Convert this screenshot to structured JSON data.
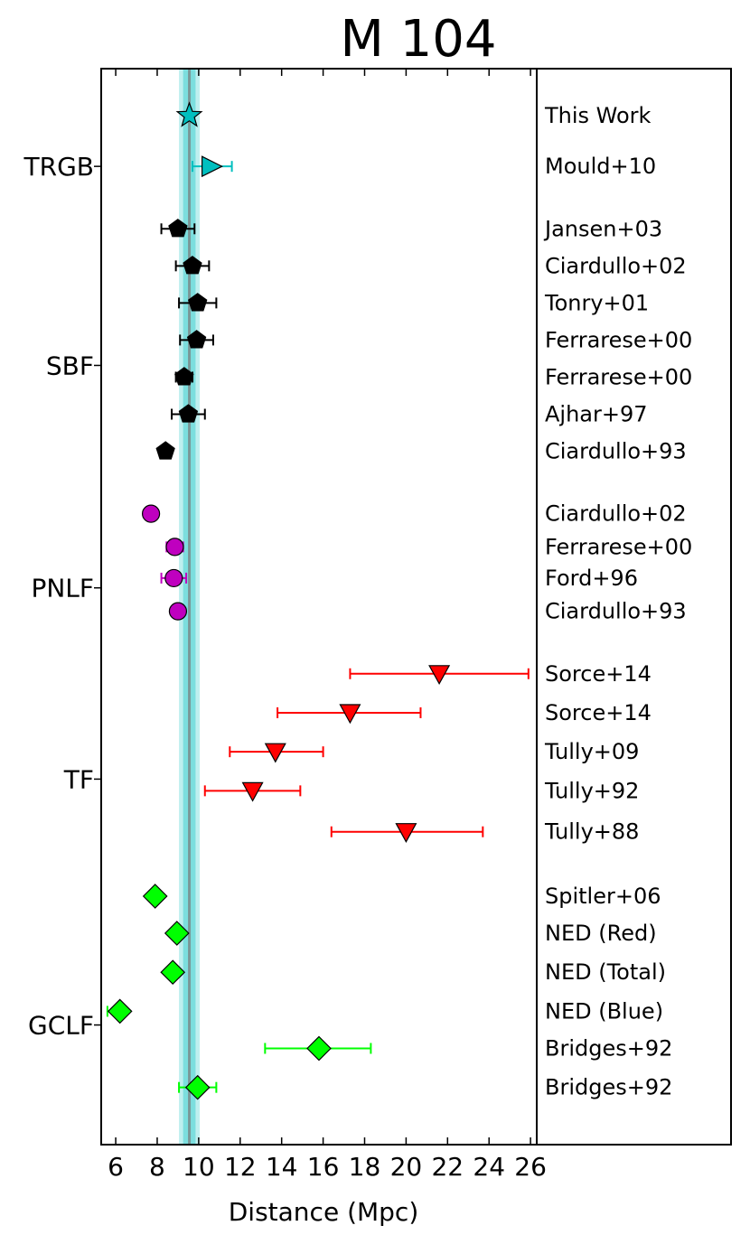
{
  "chart_data": {
    "type": "scatter",
    "title": "M 104",
    "xlabel": "Distance (Mpc)",
    "xlim": [
      5.3,
      26.3
    ],
    "xticks": [
      6,
      8,
      10,
      12,
      14,
      16,
      18,
      20,
      22,
      24,
      26
    ],
    "reference": {
      "value": 9.55,
      "band_inner": [
        9.25,
        9.85
      ],
      "band_outer": [
        9.05,
        10.05
      ],
      "color": "#00bfbf"
    },
    "groups": [
      {
        "name": "TRGB",
        "row": 1.3,
        "color": "#00bfbf"
      },
      {
        "name": "SBF",
        "row": 6.4,
        "color": "#000000"
      },
      {
        "name": "PNLF",
        "row": 12.1,
        "color": "#bf00bf"
      },
      {
        "name": "TF",
        "row": 17.0,
        "color": "#ff0000"
      },
      {
        "name": "GCLF",
        "row": 23.3,
        "color": "#00ff00"
      }
    ],
    "points": [
      {
        "label": "This Work",
        "group": "TRGB",
        "marker": "star",
        "color": "#00bfbf",
        "x": 9.55,
        "err": [
          0,
          0
        ],
        "row": 0
      },
      {
        "label": "Mould+10",
        "group": "TRGB",
        "marker": "triangle-right",
        "color": "#00bfbf",
        "x": 10.6,
        "err": [
          0.9,
          1.0
        ],
        "row": 1.3
      },
      {
        "label": "Jansen+03",
        "group": "SBF",
        "marker": "pentagon",
        "color": "#000000",
        "x": 9.0,
        "err": [
          0.8,
          0.8
        ],
        "row": 2.9
      },
      {
        "label": "Ciardullo+02",
        "group": "SBF",
        "marker": "pentagon",
        "color": "#000000",
        "x": 9.7,
        "err": [
          0.8,
          0.8
        ],
        "row": 3.85
      },
      {
        "label": "Tonry+01",
        "group": "SBF",
        "marker": "pentagon",
        "color": "#000000",
        "x": 9.95,
        "err": [
          0.9,
          0.9
        ],
        "row": 4.8
      },
      {
        "label": "Ferrarese+00",
        "group": "SBF",
        "marker": "pentagon",
        "color": "#000000",
        "x": 9.9,
        "err": [
          0.8,
          0.8
        ],
        "row": 5.75
      },
      {
        "label": "Ferrarese+00",
        "group": "SBF",
        "marker": "pentagon",
        "color": "#000000",
        "x": 9.3,
        "err": [
          0.4,
          0.4
        ],
        "row": 6.7
      },
      {
        "label": "Ajhar+97",
        "group": "SBF",
        "marker": "pentagon",
        "color": "#000000",
        "x": 9.5,
        "err": [
          0.8,
          0.8
        ],
        "row": 7.65
      },
      {
        "label": "Ciardullo+93",
        "group": "SBF",
        "marker": "pentagon",
        "color": "#000000",
        "x": 8.4,
        "err": [
          0.2,
          0.2
        ],
        "row": 8.6
      },
      {
        "label": "Ciardullo+02",
        "group": "PNLF",
        "marker": "circle",
        "color": "#bf00bf",
        "x": 7.7,
        "err": [
          0,
          0
        ],
        "row": 10.2
      },
      {
        "label": "Ferrarese+00",
        "group": "PNLF",
        "marker": "circle",
        "color": "#bf00bf",
        "x": 8.85,
        "err": [
          0.4,
          0.4
        ],
        "row": 11.05
      },
      {
        "label": "Ford+96",
        "group": "PNLF",
        "marker": "circle",
        "color": "#bf00bf",
        "x": 8.8,
        "err": [
          0.6,
          0.6
        ],
        "row": 11.85
      },
      {
        "label": "Ciardullo+93",
        "group": "PNLF",
        "marker": "circle",
        "color": "#bf00bf",
        "x": 9.0,
        "err": [
          0,
          0
        ],
        "row": 12.7
      },
      {
        "label": "Sorce+14",
        "group": "TF",
        "marker": "triangle-down",
        "color": "#ff0000",
        "x": 21.6,
        "err": [
          4.3,
          4.3
        ],
        "row": 14.3
      },
      {
        "label": "Sorce+14",
        "group": "TF",
        "marker": "triangle-down",
        "color": "#ff0000",
        "x": 17.3,
        "err": [
          3.5,
          3.4
        ],
        "row": 15.3
      },
      {
        "label": "Tully+09",
        "group": "TF",
        "marker": "triangle-down",
        "color": "#ff0000",
        "x": 13.7,
        "err": [
          2.2,
          2.3
        ],
        "row": 16.3
      },
      {
        "label": "Tully+92",
        "group": "TF",
        "marker": "triangle-down",
        "color": "#ff0000",
        "x": 12.6,
        "err": [
          2.3,
          2.3
        ],
        "row": 17.3
      },
      {
        "label": "Tully+88",
        "group": "TF",
        "marker": "triangle-down",
        "color": "#ff0000",
        "x": 20.0,
        "err": [
          3.6,
          3.7
        ],
        "row": 18.35
      },
      {
        "label": "Spitler+06",
        "group": "GCLF",
        "marker": "diamond",
        "color": "#00ff00",
        "x": 7.9,
        "err": [
          0,
          0
        ],
        "row": 20.0
      },
      {
        "label": "NED (Red)",
        "group": "GCLF",
        "marker": "diamond",
        "color": "#00ff00",
        "x": 8.95,
        "err": [
          0,
          0
        ],
        "row": 20.95
      },
      {
        "label": "NED (Total)",
        "group": "GCLF",
        "marker": "diamond",
        "color": "#00ff00",
        "x": 8.75,
        "err": [
          0,
          0
        ],
        "row": 21.95
      },
      {
        "label": "NED (Blue)",
        "group": "GCLF",
        "marker": "diamond",
        "color": "#00ff00",
        "x": 6.2,
        "err": [
          0.6,
          0
        ],
        "row": 22.95
      },
      {
        "label": "Bridges+92",
        "group": "GCLF",
        "marker": "diamond",
        "color": "#00ff00",
        "x": 15.8,
        "err": [
          2.6,
          2.5
        ],
        "row": 23.9
      },
      {
        "label": "Bridges+92",
        "group": "GCLF",
        "marker": "diamond",
        "color": "#00ff00",
        "x": 9.95,
        "err": [
          0.9,
          0.9
        ],
        "row": 24.9
      }
    ]
  }
}
